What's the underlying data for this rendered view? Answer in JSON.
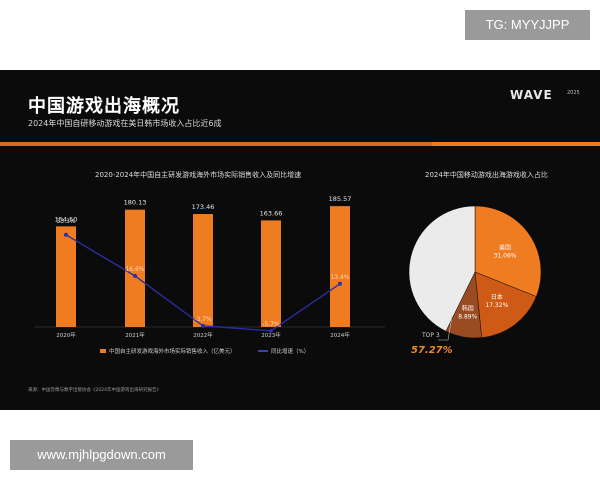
{
  "watermarks": {
    "top": "TG: MYYJJPP",
    "bottom": "www.mjhlpgdown.com"
  },
  "slide": {
    "title": "中国游戏出海概况",
    "subtitle": "2024年中国自研移动游戏在美日韩市场收入占比近6成",
    "logo": "WAVE",
    "logo_year": "2025",
    "source": "来源：中国音像与数字出版协会《2024年中国游戏出海研究报告》",
    "colors": {
      "bar": "#f07c22",
      "line": "#2b2f9e",
      "band": "#d86a28"
    }
  },
  "chart_data": [
    {
      "type": "bar",
      "title": "2020-2024年中国自主研发游戏海外市场实际销售收入及同比增速",
      "categories": [
        "2020年",
        "2021年",
        "2022年",
        "2023年",
        "2024年"
      ],
      "series": [
        {
          "name": "中国自主研发游戏海外市场实际销售收入（亿美元）",
          "type": "bar",
          "values": [
            154.5,
            180.13,
            173.46,
            163.66,
            185.57
          ],
          "labels": [
            "154.50",
            "180.13",
            "173.46",
            "163.66",
            "185.57"
          ]
        },
        {
          "name": "同比增速（%）",
          "type": "line",
          "values": [
            33.3,
            16.6,
            -3.7,
            -5.7,
            13.4
          ],
          "labels": [
            "33.3%",
            "16.6%",
            "-3.7%",
            "-5.7%",
            "13.4%"
          ]
        }
      ],
      "grid": false
    },
    {
      "type": "pie",
      "title": "2024年中国移动游戏出海游戏收入占比",
      "slices": [
        {
          "label": "美国",
          "value": 31.06,
          "value_label": "31.06%",
          "color": "#f07c22"
        },
        {
          "label": "日本",
          "value": 17.32,
          "value_label": "17.32%",
          "color": "#cf5a15"
        },
        {
          "label": "韩国",
          "value": 8.89,
          "value_label": "8.89%",
          "color": "#9a4b22"
        },
        {
          "label": "",
          "value": 42.73,
          "value_label": "",
          "color": "#ebebeb"
        }
      ],
      "annotation": {
        "label": "TOP 3",
        "value": "57.27%"
      }
    }
  ]
}
